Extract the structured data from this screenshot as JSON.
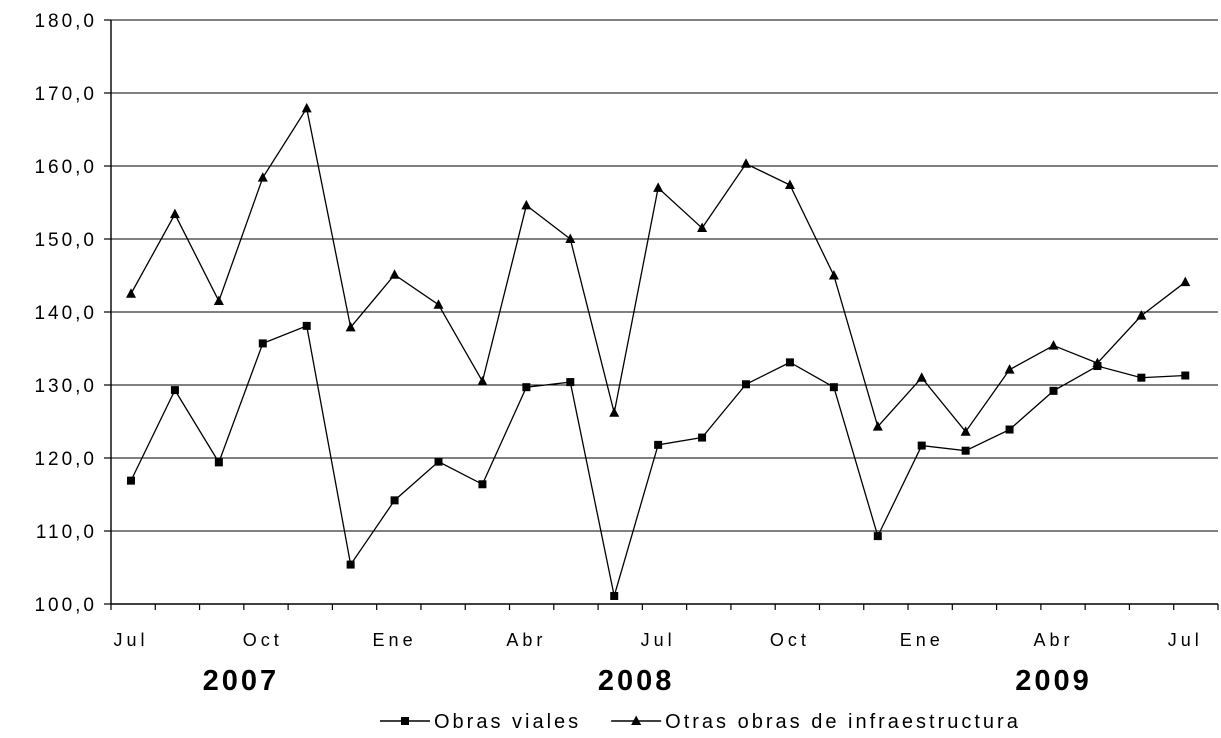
{
  "chart_data": {
    "type": "line",
    "title": "",
    "xlabel": "",
    "ylabel": "",
    "ylim": [
      100,
      180
    ],
    "yticks": [
      "100,0",
      "110,0",
      "120,0",
      "130,0",
      "140,0",
      "150,0",
      "160,0",
      "170,0",
      "180,0"
    ],
    "grid": "horizontal",
    "legend_position": "bottom",
    "x": [
      "2007-07",
      "2007-08",
      "2007-09",
      "2007-10",
      "2007-11",
      "2007-12",
      "2008-01",
      "2008-02",
      "2008-03",
      "2008-04",
      "2008-05",
      "2008-06",
      "2008-07",
      "2008-08",
      "2008-09",
      "2008-10",
      "2008-11",
      "2008-12",
      "2009-01",
      "2009-02",
      "2009-03",
      "2009-04",
      "2009-05",
      "2009-06",
      "2009-07"
    ],
    "month_labels": [
      {
        "index": 0,
        "label": "Jul"
      },
      {
        "index": 3,
        "label": "Oct"
      },
      {
        "index": 6,
        "label": "Ene"
      },
      {
        "index": 9,
        "label": "Abr"
      },
      {
        "index": 12,
        "label": "Jul"
      },
      {
        "index": 15,
        "label": "Oct"
      },
      {
        "index": 18,
        "label": "Ene"
      },
      {
        "index": 21,
        "label": "Abr"
      },
      {
        "index": 24,
        "label": "Jul"
      }
    ],
    "year_labels": [
      {
        "index": 2.5,
        "label": "2007"
      },
      {
        "index": 11.5,
        "label": "2008"
      },
      {
        "index": 21,
        "label": "2009"
      }
    ],
    "series": [
      {
        "name": "Obras viales",
        "marker": "square",
        "values": [
          116.9,
          129.3,
          119.4,
          135.7,
          138.1,
          105.4,
          114.2,
          119.5,
          116.4,
          129.7,
          130.4,
          101.1,
          121.8,
          122.8,
          130.1,
          133.1,
          129.7,
          109.3,
          121.7,
          121.0,
          123.9,
          129.2,
          132.6,
          131.0,
          131.3
        ]
      },
      {
        "name": "Otras obras de infraestructura",
        "marker": "triangle",
        "values": [
          142.5,
          153.4,
          141.5,
          158.4,
          167.9,
          137.9,
          145.1,
          141.0,
          130.5,
          154.6,
          150.0,
          126.2,
          157.0,
          151.5,
          160.3,
          157.4,
          145.0,
          124.3,
          131.0,
          123.6,
          132.1,
          135.4,
          133.0,
          139.5,
          144.1
        ]
      }
    ],
    "colors": {
      "line": "#000000",
      "grid": "#000000",
      "background": "#ffffff"
    }
  }
}
